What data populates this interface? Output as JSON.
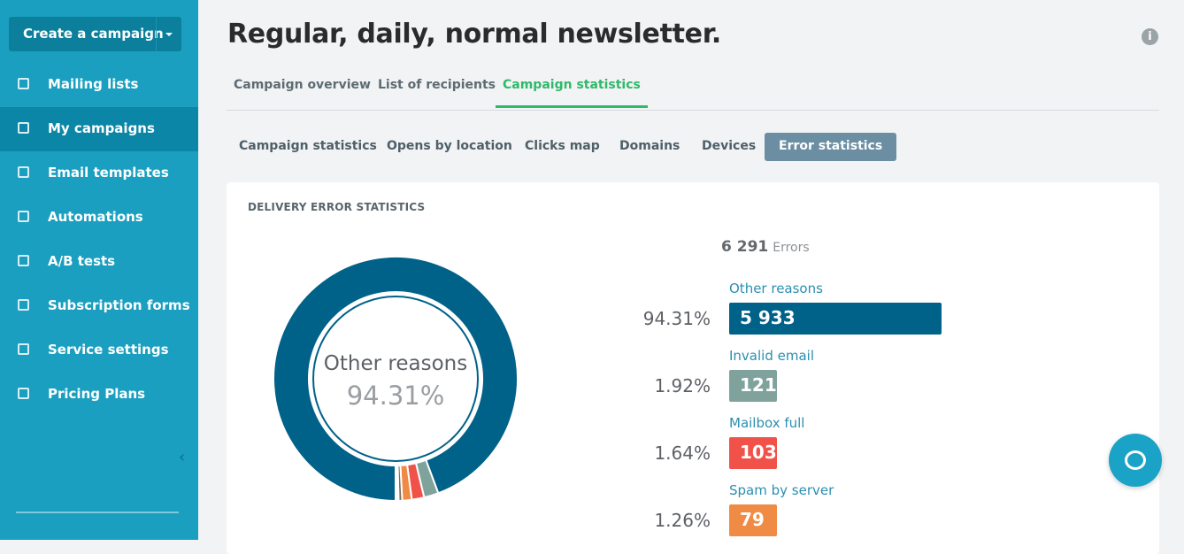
{
  "sidebar": {
    "create_button": "Create a campaign",
    "items": [
      "Mailing lists",
      "My campaigns",
      "Email templates",
      "Automations",
      "A/B tests",
      "Subscription forms",
      "Service settings",
      "Pricing Plans"
    ],
    "active": 1
  },
  "header": {
    "title": "Regular, daily, normal newsletter."
  },
  "tabs": {
    "items": [
      "Campaign overview",
      "List of recipients",
      "Campaign statistics"
    ],
    "active": 2
  },
  "subtabs": {
    "items": [
      "Campaign statistics",
      "Opens by location",
      "Clicks map",
      "Domains",
      "Devices",
      "Error statistics"
    ],
    "active": 5
  },
  "card": {
    "title": "DELIVERY ERROR STATISTICS",
    "total": 6291,
    "total_label": "6 291",
    "total_unit": "Errors",
    "items": [
      {
        "label": "Other reasons",
        "percent": "94.31%",
        "count": 5933,
        "count_label": "5 933",
        "color": "#006189"
      },
      {
        "label": "Invalid email",
        "percent": "1.92%",
        "count": 121,
        "color": "#7fa39c"
      },
      {
        "label": "Mailbox full",
        "percent": "1.64%",
        "count": 103,
        "color": "#f0524a"
      },
      {
        "label": "Spam by server",
        "percent": "1.26%",
        "count": 79,
        "color": "#f08b45"
      }
    ],
    "extra_segments": [
      {
        "value": 30,
        "color": "#7d6b5d"
      },
      {
        "value": 15,
        "color": "#4aa5a0"
      },
      {
        "value": 10,
        "color": "#8e6fb0"
      }
    ]
  }
}
